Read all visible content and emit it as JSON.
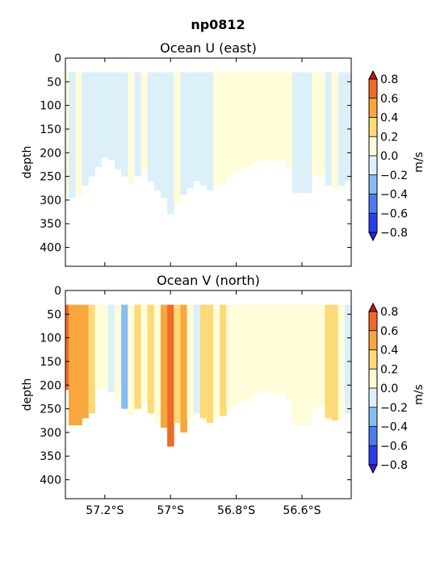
{
  "figure": {
    "suptitle": "np0812"
  },
  "colorbar": {
    "label": "m/s",
    "levels": [
      -0.8,
      -0.6,
      -0.4,
      -0.2,
      0.0,
      0.2,
      0.4,
      0.6,
      0.8
    ],
    "tick_labels": [
      "−0.8",
      "−0.6",
      "−0.4",
      "−0.2",
      "0.0",
      "0.2",
      "0.4",
      "0.6",
      "0.8"
    ],
    "band_colors": [
      "#2c3cf0",
      "#4a7ef0",
      "#86bdf4",
      "#dcf0fa",
      "#fffcda",
      "#fdda78",
      "#f7a73e",
      "#f06a28"
    ],
    "extend_low_color": "#3022d8",
    "extend_high_color": "#c21a0c"
  },
  "chart_data": [
    {
      "type": "heatmap",
      "title": "Ocean U (east)",
      "xlabel": "",
      "ylabel": "depth",
      "xlim": [
        -57.32,
        -56.45
      ],
      "ylim": [
        440,
        0
      ],
      "yticks": [
        0,
        50,
        100,
        150,
        200,
        250,
        300,
        350,
        400
      ],
      "ytick_labels": [
        "0",
        "50",
        "100",
        "150",
        "200",
        "250",
        "300",
        "350",
        "400"
      ],
      "xticks": [
        -57.2,
        -57.0,
        -56.8,
        -56.6
      ],
      "xtick_labels": [
        "",
        "",
        "",
        ""
      ],
      "top_depth": 30,
      "columns": [
        {
          "lat": -57.32,
          "max_depth": 290,
          "u": 0.1
        },
        {
          "lat": -57.3,
          "max_depth": 295,
          "u": -0.1
        },
        {
          "lat": -57.28,
          "max_depth": 290,
          "u": 0.1
        },
        {
          "lat": -57.26,
          "max_depth": 270,
          "u": -0.1
        },
        {
          "lat": -57.24,
          "max_depth": 250,
          "u": -0.1
        },
        {
          "lat": -57.22,
          "max_depth": 230,
          "u": -0.1
        },
        {
          "lat": -57.2,
          "max_depth": 210,
          "u": -0.1
        },
        {
          "lat": -57.18,
          "max_depth": 215,
          "u": -0.1
        },
        {
          "lat": -57.16,
          "max_depth": 235,
          "u": -0.1
        },
        {
          "lat": -57.14,
          "max_depth": 250,
          "u": -0.1
        },
        {
          "lat": -57.12,
          "max_depth": 265,
          "u": 0.1
        },
        {
          "lat": -57.1,
          "max_depth": 250,
          "u": -0.1
        },
        {
          "lat": -57.08,
          "max_depth": 240,
          "u": 0.1
        },
        {
          "lat": -57.06,
          "max_depth": 260,
          "u": -0.1
        },
        {
          "lat": -57.04,
          "max_depth": 280,
          "u": -0.1
        },
        {
          "lat": -57.02,
          "max_depth": 295,
          "u": -0.1
        },
        {
          "lat": -57.0,
          "max_depth": 330,
          "u": -0.1
        },
        {
          "lat": -56.98,
          "max_depth": 310,
          "u": 0.1
        },
        {
          "lat": -56.96,
          "max_depth": 290,
          "u": -0.1
        },
        {
          "lat": -56.94,
          "max_depth": 275,
          "u": -0.1
        },
        {
          "lat": -56.92,
          "max_depth": 260,
          "u": -0.1
        },
        {
          "lat": -56.9,
          "max_depth": 270,
          "u": -0.1
        },
        {
          "lat": -56.88,
          "max_depth": 280,
          "u": -0.1
        },
        {
          "lat": -56.86,
          "max_depth": 270,
          "u": 0.1
        },
        {
          "lat": -56.84,
          "max_depth": 265,
          "u": 0.1
        },
        {
          "lat": -56.82,
          "max_depth": 250,
          "u": 0.1
        },
        {
          "lat": -56.8,
          "max_depth": 240,
          "u": 0.1
        },
        {
          "lat": -56.78,
          "max_depth": 235,
          "u": 0.1
        },
        {
          "lat": -56.76,
          "max_depth": 230,
          "u": 0.1
        },
        {
          "lat": -56.74,
          "max_depth": 220,
          "u": 0.1
        },
        {
          "lat": -56.72,
          "max_depth": 215,
          "u": 0.1
        },
        {
          "lat": -56.7,
          "max_depth": 215,
          "u": 0.1
        },
        {
          "lat": -56.68,
          "max_depth": 220,
          "u": 0.1
        },
        {
          "lat": -56.66,
          "max_depth": 215,
          "u": 0.1
        },
        {
          "lat": -56.64,
          "max_depth": 230,
          "u": 0.1
        },
        {
          "lat": -56.62,
          "max_depth": 285,
          "u": -0.1
        },
        {
          "lat": -56.6,
          "max_depth": 285,
          "u": -0.1
        },
        {
          "lat": -56.58,
          "max_depth": 285,
          "u": -0.1
        },
        {
          "lat": -56.56,
          "max_depth": 250,
          "u": 0.1
        },
        {
          "lat": -56.54,
          "max_depth": 245,
          "u": 0.1
        },
        {
          "lat": -56.52,
          "max_depth": 270,
          "u": -0.1
        },
        {
          "lat": -56.5,
          "max_depth": 275,
          "u": 0.1
        },
        {
          "lat": -56.48,
          "max_depth": 270,
          "u": -0.1
        },
        {
          "lat": -56.46,
          "max_depth": 260,
          "u": -0.1
        }
      ]
    },
    {
      "type": "heatmap",
      "title": "Ocean V (north)",
      "xlabel": "",
      "ylabel": "depth",
      "xlim": [
        -57.32,
        -56.45
      ],
      "ylim": [
        440,
        0
      ],
      "yticks": [
        0,
        50,
        100,
        150,
        200,
        250,
        300,
        350,
        400
      ],
      "ytick_labels": [
        "0",
        "50",
        "100",
        "150",
        "200",
        "250",
        "300",
        "350",
        "400"
      ],
      "xticks": [
        -57.2,
        -57.0,
        -56.8,
        -56.6
      ],
      "xtick_labels": [
        "57.2°S",
        "57°S",
        "56.8°S",
        "56.6°S"
      ],
      "top_depth": 30,
      "columns": [
        {
          "lat": -57.32,
          "max_depth": 210,
          "v": 0.7
        },
        {
          "lat": -57.3,
          "max_depth": 285,
          "v": 0.5
        },
        {
          "lat": -57.28,
          "max_depth": 285,
          "v": 0.5
        },
        {
          "lat": -57.26,
          "max_depth": 270,
          "v": 0.5
        },
        {
          "lat": -57.24,
          "max_depth": 260,
          "v": 0.3
        },
        {
          "lat": -57.22,
          "max_depth": 210,
          "v": 0.1
        },
        {
          "lat": -57.2,
          "max_depth": 210,
          "v": 0.1
        },
        {
          "lat": -57.18,
          "max_depth": 215,
          "v": -0.1
        },
        {
          "lat": -57.16,
          "max_depth": 235,
          "v": 0.1
        },
        {
          "lat": -57.14,
          "max_depth": 250,
          "v": -0.3
        },
        {
          "lat": -57.12,
          "max_depth": 265,
          "v": 0.1
        },
        {
          "lat": -57.1,
          "max_depth": 250,
          "v": 0.3
        },
        {
          "lat": -57.08,
          "max_depth": 240,
          "v": 0.1
        },
        {
          "lat": -57.06,
          "max_depth": 260,
          "v": 0.3
        },
        {
          "lat": -57.04,
          "max_depth": 280,
          "v": 0.1
        },
        {
          "lat": -57.02,
          "max_depth": 290,
          "v": 0.5
        },
        {
          "lat": -57.0,
          "max_depth": 330,
          "v": 0.7
        },
        {
          "lat": -56.98,
          "max_depth": 280,
          "v": 0.3
        },
        {
          "lat": -56.96,
          "max_depth": 300,
          "v": 0.5
        },
        {
          "lat": -56.94,
          "max_depth": 270,
          "v": 0.1
        },
        {
          "lat": -56.92,
          "max_depth": 260,
          "v": -0.1
        },
        {
          "lat": -56.9,
          "max_depth": 270,
          "v": 0.3
        },
        {
          "lat": -56.88,
          "max_depth": 280,
          "v": 0.3
        },
        {
          "lat": -56.86,
          "max_depth": 270,
          "v": 0.1
        },
        {
          "lat": -56.84,
          "max_depth": 265,
          "v": 0.3
        },
        {
          "lat": -56.82,
          "max_depth": 250,
          "v": 0.1
        },
        {
          "lat": -56.8,
          "max_depth": 240,
          "v": 0.1
        },
        {
          "lat": -56.78,
          "max_depth": 235,
          "v": 0.1
        },
        {
          "lat": -56.76,
          "max_depth": 230,
          "v": 0.1
        },
        {
          "lat": -56.74,
          "max_depth": 220,
          "v": 0.1
        },
        {
          "lat": -56.72,
          "max_depth": 215,
          "v": 0.1
        },
        {
          "lat": -56.7,
          "max_depth": 215,
          "v": 0.1
        },
        {
          "lat": -56.68,
          "max_depth": 220,
          "v": 0.1
        },
        {
          "lat": -56.66,
          "max_depth": 215,
          "v": 0.1
        },
        {
          "lat": -56.64,
          "max_depth": 230,
          "v": 0.1
        },
        {
          "lat": -56.62,
          "max_depth": 285,
          "v": 0.1
        },
        {
          "lat": -56.6,
          "max_depth": 285,
          "v": 0.1
        },
        {
          "lat": -56.58,
          "max_depth": 285,
          "v": 0.1
        },
        {
          "lat": -56.56,
          "max_depth": 250,
          "v": 0.1
        },
        {
          "lat": -56.54,
          "max_depth": 245,
          "v": 0.1
        },
        {
          "lat": -56.52,
          "max_depth": 270,
          "v": 0.3
        },
        {
          "lat": -56.5,
          "max_depth": 275,
          "v": 0.3
        },
        {
          "lat": -56.48,
          "max_depth": 270,
          "v": 0.1
        },
        {
          "lat": -56.46,
          "max_depth": 260,
          "v": -0.1
        }
      ]
    }
  ]
}
